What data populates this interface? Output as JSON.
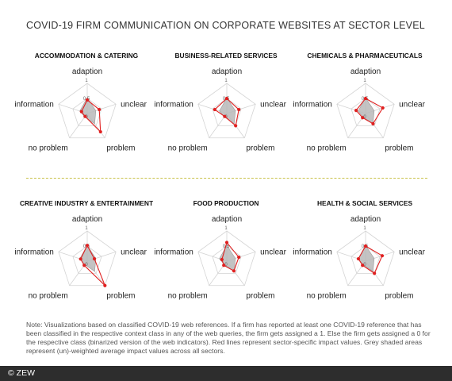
{
  "title": "COVID-19 FIRM COMMUNICATION ON CORPORATE WEBSITES AT SECTOR LEVEL",
  "note": "Note: Visualizations based on classified COVID-19 web references. If a firm has reported at least one COVID-19 reference that has been classified in the respective context class in any of the web queries, the firm gets assigned a 1. Else the firm gets assigned a 0 for the respective class (binarized version of the web indicators). Red lines represent sector-specific impact values. Grey shaded areas represent (un)-weighted average impact values across all sectors.",
  "footer": "© ZEW",
  "colors": {
    "sector_line": "#e02020",
    "average_fill": "#b8b8b8",
    "grid": "#d4d4d4",
    "divider": "#c9c24a"
  },
  "chart_data": [
    {
      "type": "radar",
      "title": "ACCOMMODATION & CATERING",
      "axes": [
        "adaption",
        "unclear",
        "problem",
        "no problem",
        "information"
      ],
      "ticks": [
        "0",
        "0.5",
        "1"
      ],
      "rlim": [
        0,
        1
      ],
      "series": [
        {
          "values": [
            0.45,
            0.42,
            0.75,
            0.12,
            0.2
          ]
        },
        {
          "values": [
            0.52,
            0.3,
            0.42,
            0.14,
            0.26
          ]
        }
      ]
    },
    {
      "type": "radar",
      "title": "BUSINESS-RELATED SERVICES",
      "axes": [
        "adaption",
        "unclear",
        "problem",
        "no problem",
        "information"
      ],
      "ticks": [
        "0",
        "0.5",
        "1"
      ],
      "rlim": [
        0,
        1
      ],
      "series": [
        {
          "values": [
            0.5,
            0.42,
            0.5,
            0.12,
            0.42
          ]
        },
        {
          "values": [
            0.52,
            0.3,
            0.42,
            0.14,
            0.26
          ]
        }
      ]
    },
    {
      "type": "radar",
      "title": "CHEMICALS & PHARMACEUTICALS",
      "axes": [
        "adaption",
        "unclear",
        "problem",
        "no problem",
        "information"
      ],
      "ticks": [
        "0",
        "0.5",
        "1"
      ],
      "rlim": [
        0,
        1
      ],
      "series": [
        {
          "values": [
            0.5,
            0.6,
            0.42,
            0.17,
            0.33
          ]
        },
        {
          "values": [
            0.52,
            0.3,
            0.42,
            0.14,
            0.26
          ]
        }
      ]
    },
    {
      "type": "radar",
      "title": "CREATIVE INDUSTRY & ENTERTAINMENT",
      "axes": [
        "adaption",
        "unclear",
        "problem",
        "no problem",
        "information"
      ],
      "ticks": [
        "0",
        "0.5",
        "1"
      ],
      "rlim": [
        0,
        1
      ],
      "series": [
        {
          "values": [
            0.52,
            0.25,
            1.0,
            0.17,
            0.23
          ]
        },
        {
          "values": [
            0.52,
            0.3,
            0.42,
            0.14,
            0.26
          ]
        }
      ]
    },
    {
      "type": "radar",
      "title": "FOOD PRODUCTION",
      "axes": [
        "adaption",
        "unclear",
        "problem",
        "no problem",
        "information"
      ],
      "ticks": [
        "0",
        "0.5",
        "1"
      ],
      "rlim": [
        0,
        1
      ],
      "series": [
        {
          "values": [
            0.62,
            0.42,
            0.4,
            0.17,
            0.17
          ]
        },
        {
          "values": [
            0.52,
            0.3,
            0.42,
            0.14,
            0.26
          ]
        }
      ]
    },
    {
      "type": "radar",
      "title": "HEALTH & SOCIAL SERVICES",
      "axes": [
        "adaption",
        "unclear",
        "problem",
        "no problem",
        "information"
      ],
      "ticks": [
        "0",
        "0.5",
        "1"
      ],
      "rlim": [
        0,
        1
      ],
      "series": [
        {
          "values": [
            0.5,
            0.58,
            0.5,
            0.17,
            0.25
          ]
        },
        {
          "values": [
            0.52,
            0.3,
            0.42,
            0.14,
            0.26
          ]
        }
      ]
    }
  ]
}
